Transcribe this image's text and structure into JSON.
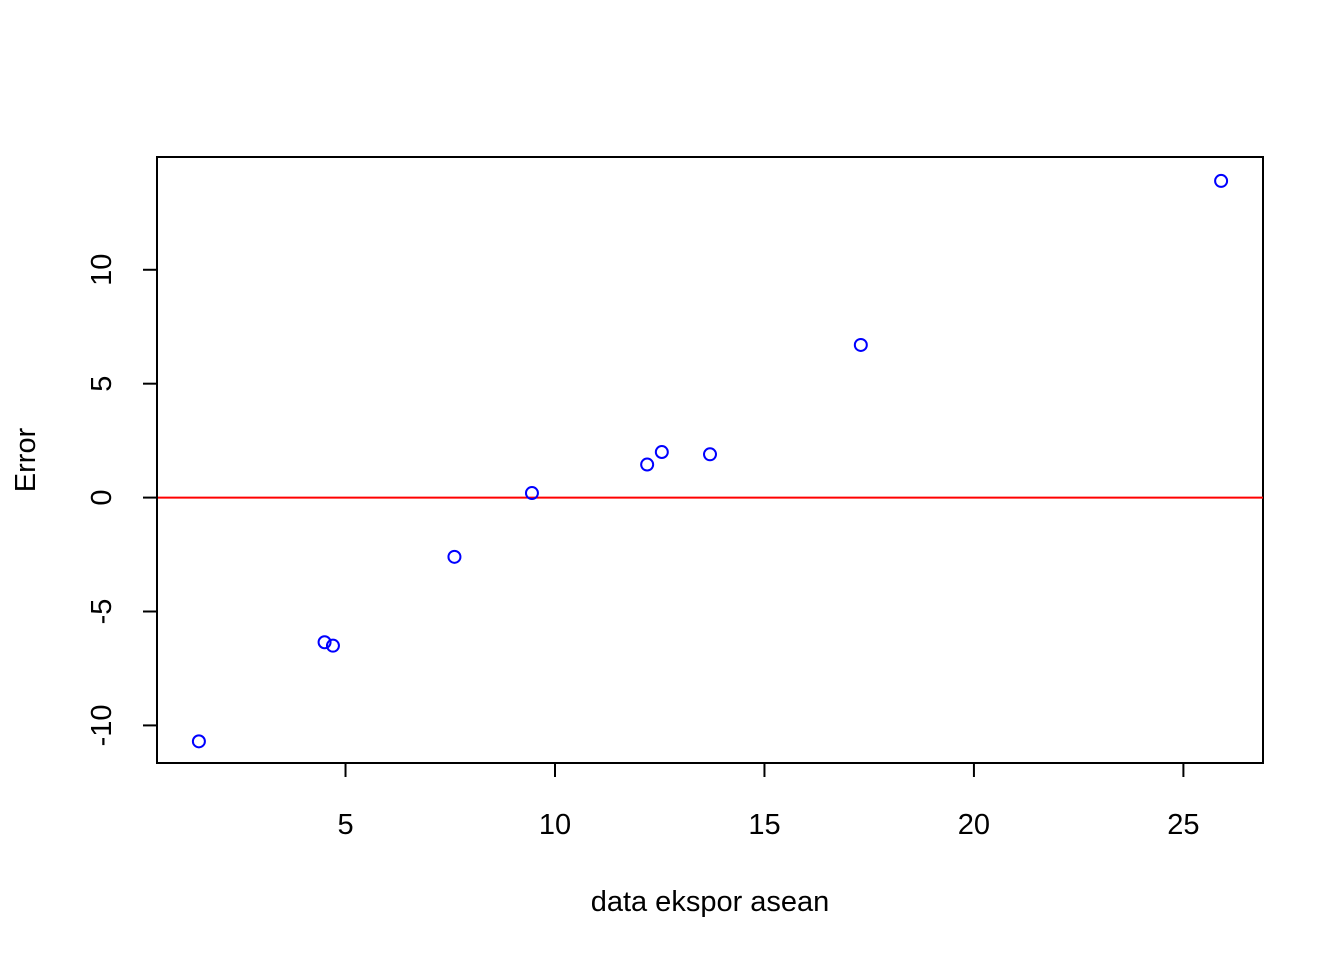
{
  "chart_data": {
    "type": "scatter",
    "title": "",
    "xlabel": "data ekspor asean",
    "ylabel": "Error",
    "xlim": [
      0.5,
      26.9
    ],
    "ylim": [
      -11.65,
      14.95
    ],
    "x_ticks": [
      5,
      10,
      15,
      20,
      25
    ],
    "x_tick_labels": [
      "5",
      "10",
      "15",
      "20",
      "25"
    ],
    "y_ticks": [
      -10,
      -5,
      0,
      5,
      10
    ],
    "y_tick_labels": [
      "-10",
      "-5",
      "0",
      "5",
      "10"
    ],
    "grid": false,
    "legend": "none",
    "reference_line": {
      "y": 0,
      "color": "#ff0000"
    },
    "point_color": "#0000ff",
    "series": [
      {
        "points": [
          {
            "x": 1.5,
            "y": -10.7
          },
          {
            "x": 4.5,
            "y": -6.35
          },
          {
            "x": 4.7,
            "y": -6.5
          },
          {
            "x": 7.6,
            "y": -2.6
          },
          {
            "x": 9.45,
            "y": 0.2
          },
          {
            "x": 12.2,
            "y": 1.45
          },
          {
            "x": 12.55,
            "y": 2.0
          },
          {
            "x": 13.7,
            "y": 1.9
          },
          {
            "x": 17.3,
            "y": 6.7
          },
          {
            "x": 25.9,
            "y": 13.9
          }
        ]
      }
    ]
  }
}
